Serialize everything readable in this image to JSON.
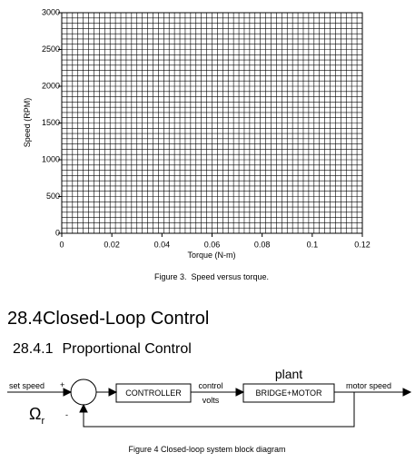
{
  "figure3": {
    "ylabel": "Speed (RPM)",
    "xlabel": "Torque (N-m)",
    "xlim": [
      0,
      0.12
    ],
    "ylim": [
      0,
      3000
    ],
    "xticks": [
      0,
      0.02,
      0.04,
      0.06,
      0.08,
      0.1,
      0.12
    ],
    "yticks": [
      0,
      500,
      1000,
      1500,
      2000,
      2500,
      3000
    ],
    "grid": true,
    "caption": "Figure 3.  Speed versus torque."
  },
  "section": {
    "number": "28.4",
    "title": "Closed-Loop Control"
  },
  "subsection": {
    "number": "28.4.1",
    "title": "Proportional Control"
  },
  "figure4": {
    "input_label": "set speed",
    "plus_sign": "+",
    "minus_sign": "-",
    "input_symbol": "Ω",
    "input_subscript": "r",
    "controller": "CONTROLLER",
    "control_label_top": "control",
    "control_label_bottom": "volts",
    "plant_title": "plant",
    "plant": "BRIDGE+MOTOR",
    "output_label": "motor speed",
    "caption": "Figure 4 Closed-loop system block diagram"
  }
}
